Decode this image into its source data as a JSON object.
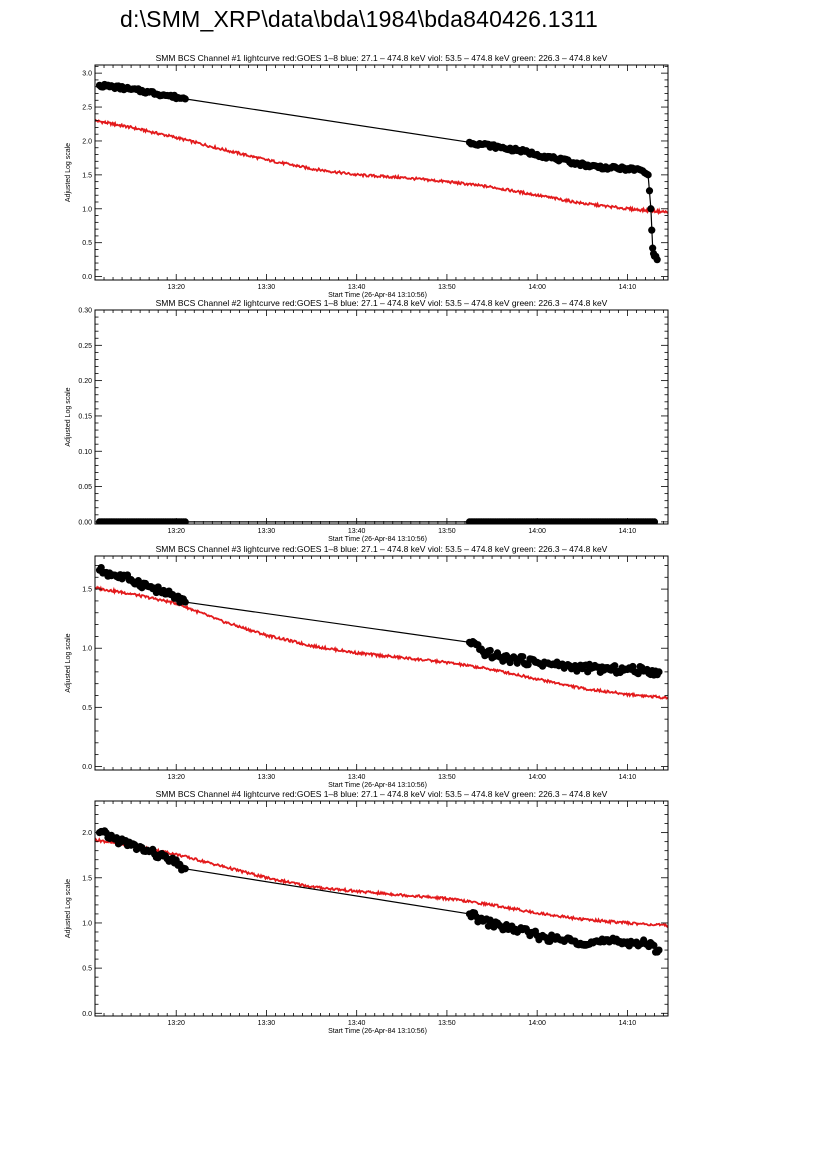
{
  "page": {
    "title": "d:\\SMM_XRP\\data\\bda\\1984\\bda840426.1311"
  },
  "chart_data": [
    {
      "type": "line",
      "title": "SMM BCS Channel #1 lightcurve  red:GOES 1–8  blue: 27.1 – 474.8 keV  viol: 53.5 – 474.8 keV  green: 226.3 – 474.8 keV",
      "xlabel": "Start Time (26-Apr-84 13:10:56)",
      "ylabel": "Adjusted Log scale",
      "xlim": [
        11,
        74.5
      ],
      "ylim": [
        -0.05,
        3.12
      ],
      "x_ticks": [
        20,
        30,
        40,
        50,
        60,
        70
      ],
      "x_tick_labels": [
        "13:20",
        "13:30",
        "13:40",
        "13:50",
        "14:00",
        "14:10"
      ],
      "y_ticks": [
        0,
        0.5,
        1,
        1.5,
        2,
        2.5,
        3
      ],
      "y_tick_labels": [
        "0.0",
        "0.5",
        "1.0",
        "1.5",
        "2.0",
        "2.5",
        "3.0"
      ],
      "grid": false,
      "series": [
        {
          "color": "#000000",
          "style": "line+points",
          "x": [
            11.5,
            13,
            15,
            17,
            19,
            21,
            52.5,
            54,
            56,
            58,
            60,
            62,
            64,
            66,
            68,
            70,
            71.5,
            72.3,
            72.6,
            72.8,
            73.0,
            73.3
          ],
          "y": [
            2.82,
            2.8,
            2.76,
            2.72,
            2.67,
            2.62,
            1.98,
            1.95,
            1.9,
            1.86,
            1.8,
            1.74,
            1.68,
            1.63,
            1.6,
            1.59,
            1.57,
            1.5,
            1.0,
            0.42,
            0.3,
            0.25
          ]
        },
        {
          "color": "#e31a1c",
          "style": "line",
          "x": [
            11,
            15,
            20,
            25,
            30,
            35,
            40,
            45,
            50,
            55,
            60,
            65,
            70,
            74.5
          ],
          "y": [
            2.3,
            2.2,
            2.05,
            1.88,
            1.72,
            1.59,
            1.5,
            1.46,
            1.4,
            1.32,
            1.2,
            1.08,
            1.0,
            0.95
          ]
        }
      ]
    },
    {
      "type": "line",
      "title": "SMM BCS Channel #2 lightcurve  red:GOES 1–8  blue: 27.1 – 474.8 keV  viol: 53.5 – 474.8 keV  green: 226.3 – 474.8 keV",
      "xlabel": "Start Time (26-Apr-84 13:10:56)",
      "ylabel": "Adjusted Log scale",
      "xlim": [
        11,
        74.5
      ],
      "ylim": [
        -0.003,
        0.3
      ],
      "x_ticks": [
        20,
        30,
        40,
        50,
        60,
        70
      ],
      "x_tick_labels": [
        "13:20",
        "13:30",
        "13:40",
        "13:50",
        "14:00",
        "14:10"
      ],
      "y_ticks": [
        0,
        0.05,
        0.1,
        0.15,
        0.2,
        0.25,
        0.3
      ],
      "y_tick_labels": [
        "0.00",
        "0.05",
        "0.10",
        "0.15",
        "0.20",
        "0.25",
        "0.30"
      ],
      "grid": false,
      "series": [
        {
          "color": "#000000",
          "style": "line+points",
          "x": [
            11.5,
            13,
            15,
            17,
            19,
            21,
            52.5,
            55,
            58,
            61,
            64,
            67,
            70,
            73
          ],
          "y": [
            0,
            0,
            0,
            0,
            0,
            0,
            0,
            0,
            0,
            0,
            0,
            0,
            0,
            0
          ]
        }
      ]
    },
    {
      "type": "line",
      "title": "SMM BCS Channel #3 lightcurve  red:GOES 1–8  blue: 27.1 – 474.8 keV  viol: 53.5 – 474.8 keV  green: 226.3 – 474.8 keV",
      "xlabel": "Start Time (26-Apr-84 13:10:56)",
      "ylabel": "Adjusted Log scale",
      "xlim": [
        11,
        74.5
      ],
      "ylim": [
        -0.03,
        1.78
      ],
      "x_ticks": [
        20,
        30,
        40,
        50,
        60,
        70
      ],
      "x_tick_labels": [
        "13:20",
        "13:30",
        "13:40",
        "13:50",
        "14:00",
        "14:10"
      ],
      "y_ticks": [
        0,
        0.5,
        1,
        1.5
      ],
      "y_tick_labels": [
        "0.0",
        "0.5",
        "1.0",
        "1.5"
      ],
      "grid": false,
      "series": [
        {
          "color": "#000000",
          "style": "line+points",
          "x": [
            11.5,
            13,
            15,
            17,
            19,
            21,
            52.5,
            54,
            56,
            58,
            60,
            62,
            64,
            66,
            68,
            70,
            72,
            73.5
          ],
          "y": [
            1.66,
            1.62,
            1.58,
            1.52,
            1.46,
            1.39,
            1.05,
            0.97,
            0.92,
            0.9,
            0.88,
            0.86,
            0.84,
            0.83,
            0.82,
            0.82,
            0.81,
            0.8
          ]
        },
        {
          "color": "#e31a1c",
          "style": "line",
          "x": [
            11,
            15,
            20,
            25,
            30,
            35,
            40,
            45,
            50,
            55,
            60,
            65,
            70,
            74.5
          ],
          "y": [
            1.51,
            1.46,
            1.38,
            1.23,
            1.11,
            1.02,
            0.96,
            0.92,
            0.88,
            0.82,
            0.74,
            0.66,
            0.61,
            0.58
          ]
        }
      ]
    },
    {
      "type": "line",
      "title": "SMM BCS Channel #4 lightcurve  red:GOES 1–8  blue: 27.1 – 474.8 keV  viol: 53.5 – 474.8 keV  green: 226.3 – 474.8 keV",
      "xlabel": "Start Time (26-Apr-84 13:10:56)",
      "ylabel": "Adjusted Log scale",
      "xlim": [
        11,
        74.5
      ],
      "ylim": [
        -0.03,
        2.35
      ],
      "x_ticks": [
        20,
        30,
        40,
        50,
        60,
        70
      ],
      "x_tick_labels": [
        "13:20",
        "13:30",
        "13:40",
        "13:50",
        "14:00",
        "14:10"
      ],
      "y_ticks": [
        0,
        0.5,
        1,
        1.5,
        2
      ],
      "y_tick_labels": [
        "0.0",
        "0.5",
        "1.0",
        "1.5",
        "2.0"
      ],
      "grid": false,
      "series": [
        {
          "color": "#000000",
          "style": "line+points",
          "x": [
            11.5,
            13,
            15,
            17,
            19,
            21,
            52.5,
            54,
            56,
            58,
            60,
            62,
            64,
            66,
            68,
            70,
            72,
            73.5
          ],
          "y": [
            2.0,
            1.94,
            1.86,
            1.79,
            1.71,
            1.6,
            1.1,
            1.02,
            0.96,
            0.92,
            0.86,
            0.82,
            0.8,
            0.79,
            0.79,
            0.79,
            0.77,
            0.7
          ]
        },
        {
          "color": "#e31a1c",
          "style": "line",
          "x": [
            11,
            15,
            20,
            25,
            30,
            35,
            40,
            45,
            50,
            55,
            60,
            65,
            70,
            74.5
          ],
          "y": [
            1.92,
            1.86,
            1.76,
            1.63,
            1.5,
            1.4,
            1.35,
            1.31,
            1.27,
            1.2,
            1.11,
            1.04,
            1.0,
            0.97
          ]
        }
      ]
    }
  ]
}
